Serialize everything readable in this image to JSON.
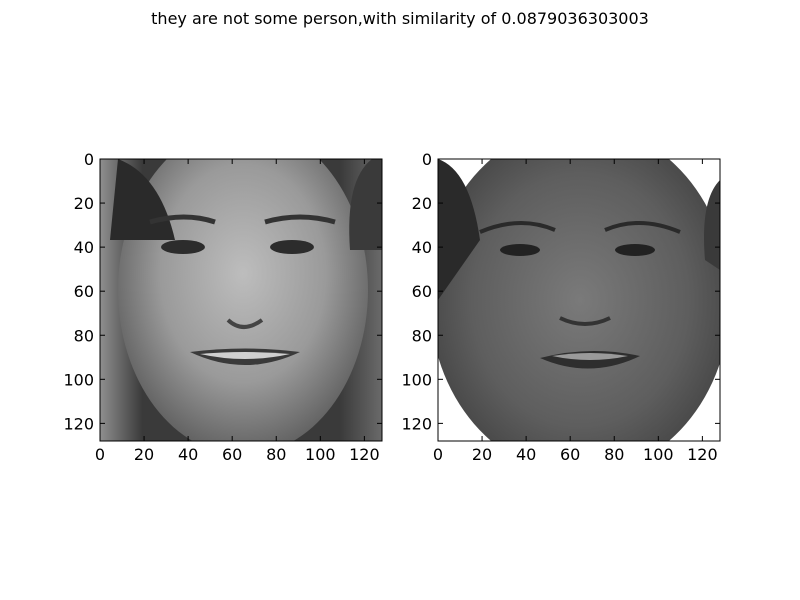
{
  "figure": {
    "title": "they are not some person,with similarity of 0.0879036303003"
  },
  "chart_data": [
    {
      "type": "image",
      "colormap": "gray",
      "title": "",
      "xlabel": "",
      "ylabel": "",
      "xlim": [
        0,
        128
      ],
      "ylim": [
        128,
        0
      ],
      "xticks": [
        0,
        20,
        40,
        60,
        80,
        100,
        120
      ],
      "yticks": [
        0,
        20,
        40,
        60,
        80,
        100,
        120
      ],
      "image_size": [
        128,
        128
      ],
      "image_depicts": "face-photo-1"
    },
    {
      "type": "image",
      "colormap": "gray",
      "title": "",
      "xlabel": "",
      "ylabel": "",
      "xlim": [
        0,
        128
      ],
      "ylim": [
        128,
        0
      ],
      "xticks": [
        0,
        20,
        40,
        60,
        80,
        100,
        120
      ],
      "yticks": [
        0,
        20,
        40,
        60,
        80,
        100,
        120
      ],
      "image_size": [
        128,
        128
      ],
      "image_depicts": "face-photo-2"
    }
  ]
}
